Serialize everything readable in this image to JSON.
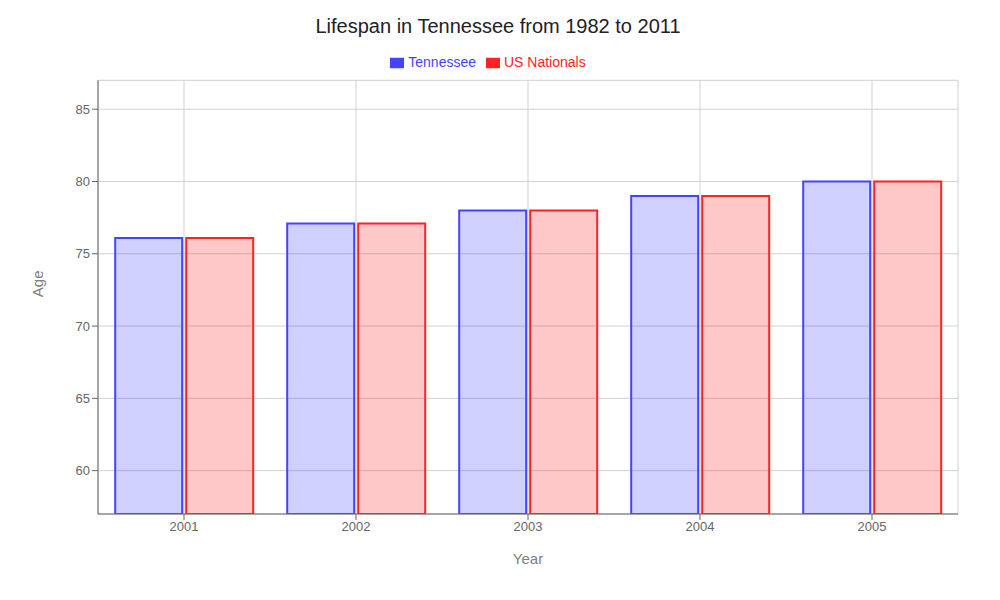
{
  "chart_data": {
    "type": "bar",
    "title": "Lifespan in Tennessee from 1982 to 2011",
    "xlabel": "Year",
    "ylabel": "Age",
    "categories": [
      "2001",
      "2002",
      "2003",
      "2004",
      "2005"
    ],
    "series": [
      {
        "name": "Tennessee",
        "color": "#4444ff",
        "values": [
          76.1,
          77.1,
          78.0,
          79.0,
          80.0
        ]
      },
      {
        "name": "US Nationals",
        "color": "#ff2222",
        "values": [
          76.1,
          77.1,
          78.0,
          79.0,
          80.0
        ]
      }
    ],
    "ylim": [
      57,
      87
    ],
    "yticks": [
      60,
      65,
      70,
      75,
      80,
      85
    ],
    "grid": true,
    "legend": "top"
  }
}
